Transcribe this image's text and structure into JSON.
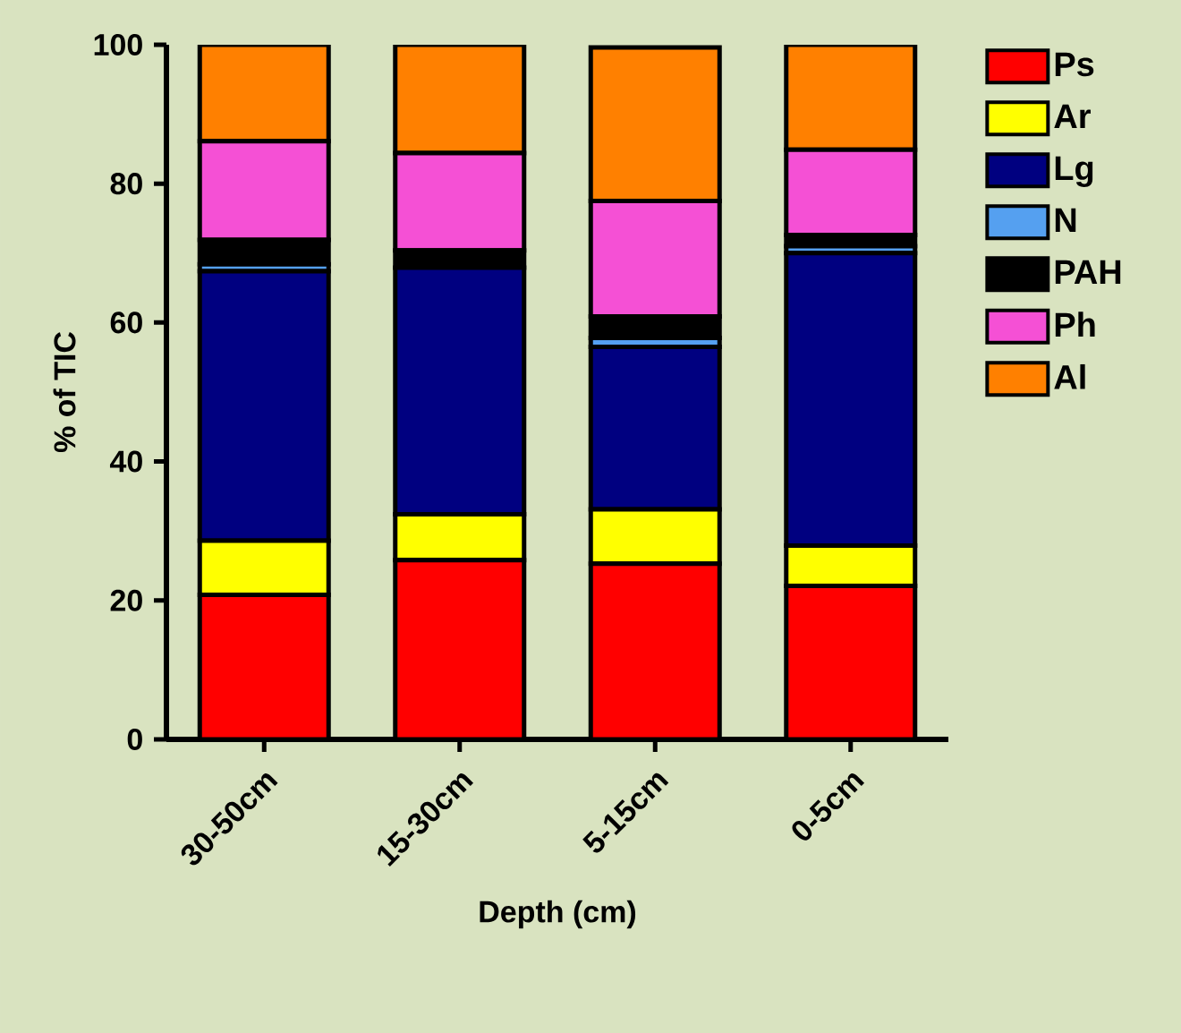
{
  "chart_data": {
    "type": "bar",
    "stacked": true,
    "xlabel": "Depth (cm)",
    "ylabel": "% of TIC",
    "categories": [
      "30-50cm",
      "15-30cm",
      "5-15cm",
      "0-5cm"
    ],
    "series": [
      {
        "name": "Ps",
        "color": "#ff0000",
        "values": [
          20.8,
          25.8,
          25.3,
          22.1
        ]
      },
      {
        "name": "Ar",
        "color": "#ffff00",
        "values": [
          7.8,
          6.6,
          7.8,
          5.8
        ]
      },
      {
        "name": "Lg",
        "color": "#000080",
        "values": [
          38.8,
          35.5,
          23.4,
          42.1
        ]
      },
      {
        "name": "N",
        "color": "#55a0f0",
        "values": [
          1.0,
          0,
          1.3,
          1.0
        ]
      },
      {
        "name": "PAH",
        "color": "#000000",
        "values": [
          3.5,
          2.5,
          3.1,
          1.6
        ]
      },
      {
        "name": "Ph",
        "color": "#f550d5",
        "values": [
          14.2,
          14.0,
          16.6,
          12.3
        ]
      },
      {
        "name": "Al",
        "color": "#ff8000",
        "values": [
          13.9,
          15.6,
          22.1,
          15.1
        ]
      }
    ],
    "ylim": [
      0,
      100
    ],
    "yticks": [
      0,
      20,
      40,
      60,
      80,
      100
    ],
    "grid": false,
    "legend": "right"
  }
}
